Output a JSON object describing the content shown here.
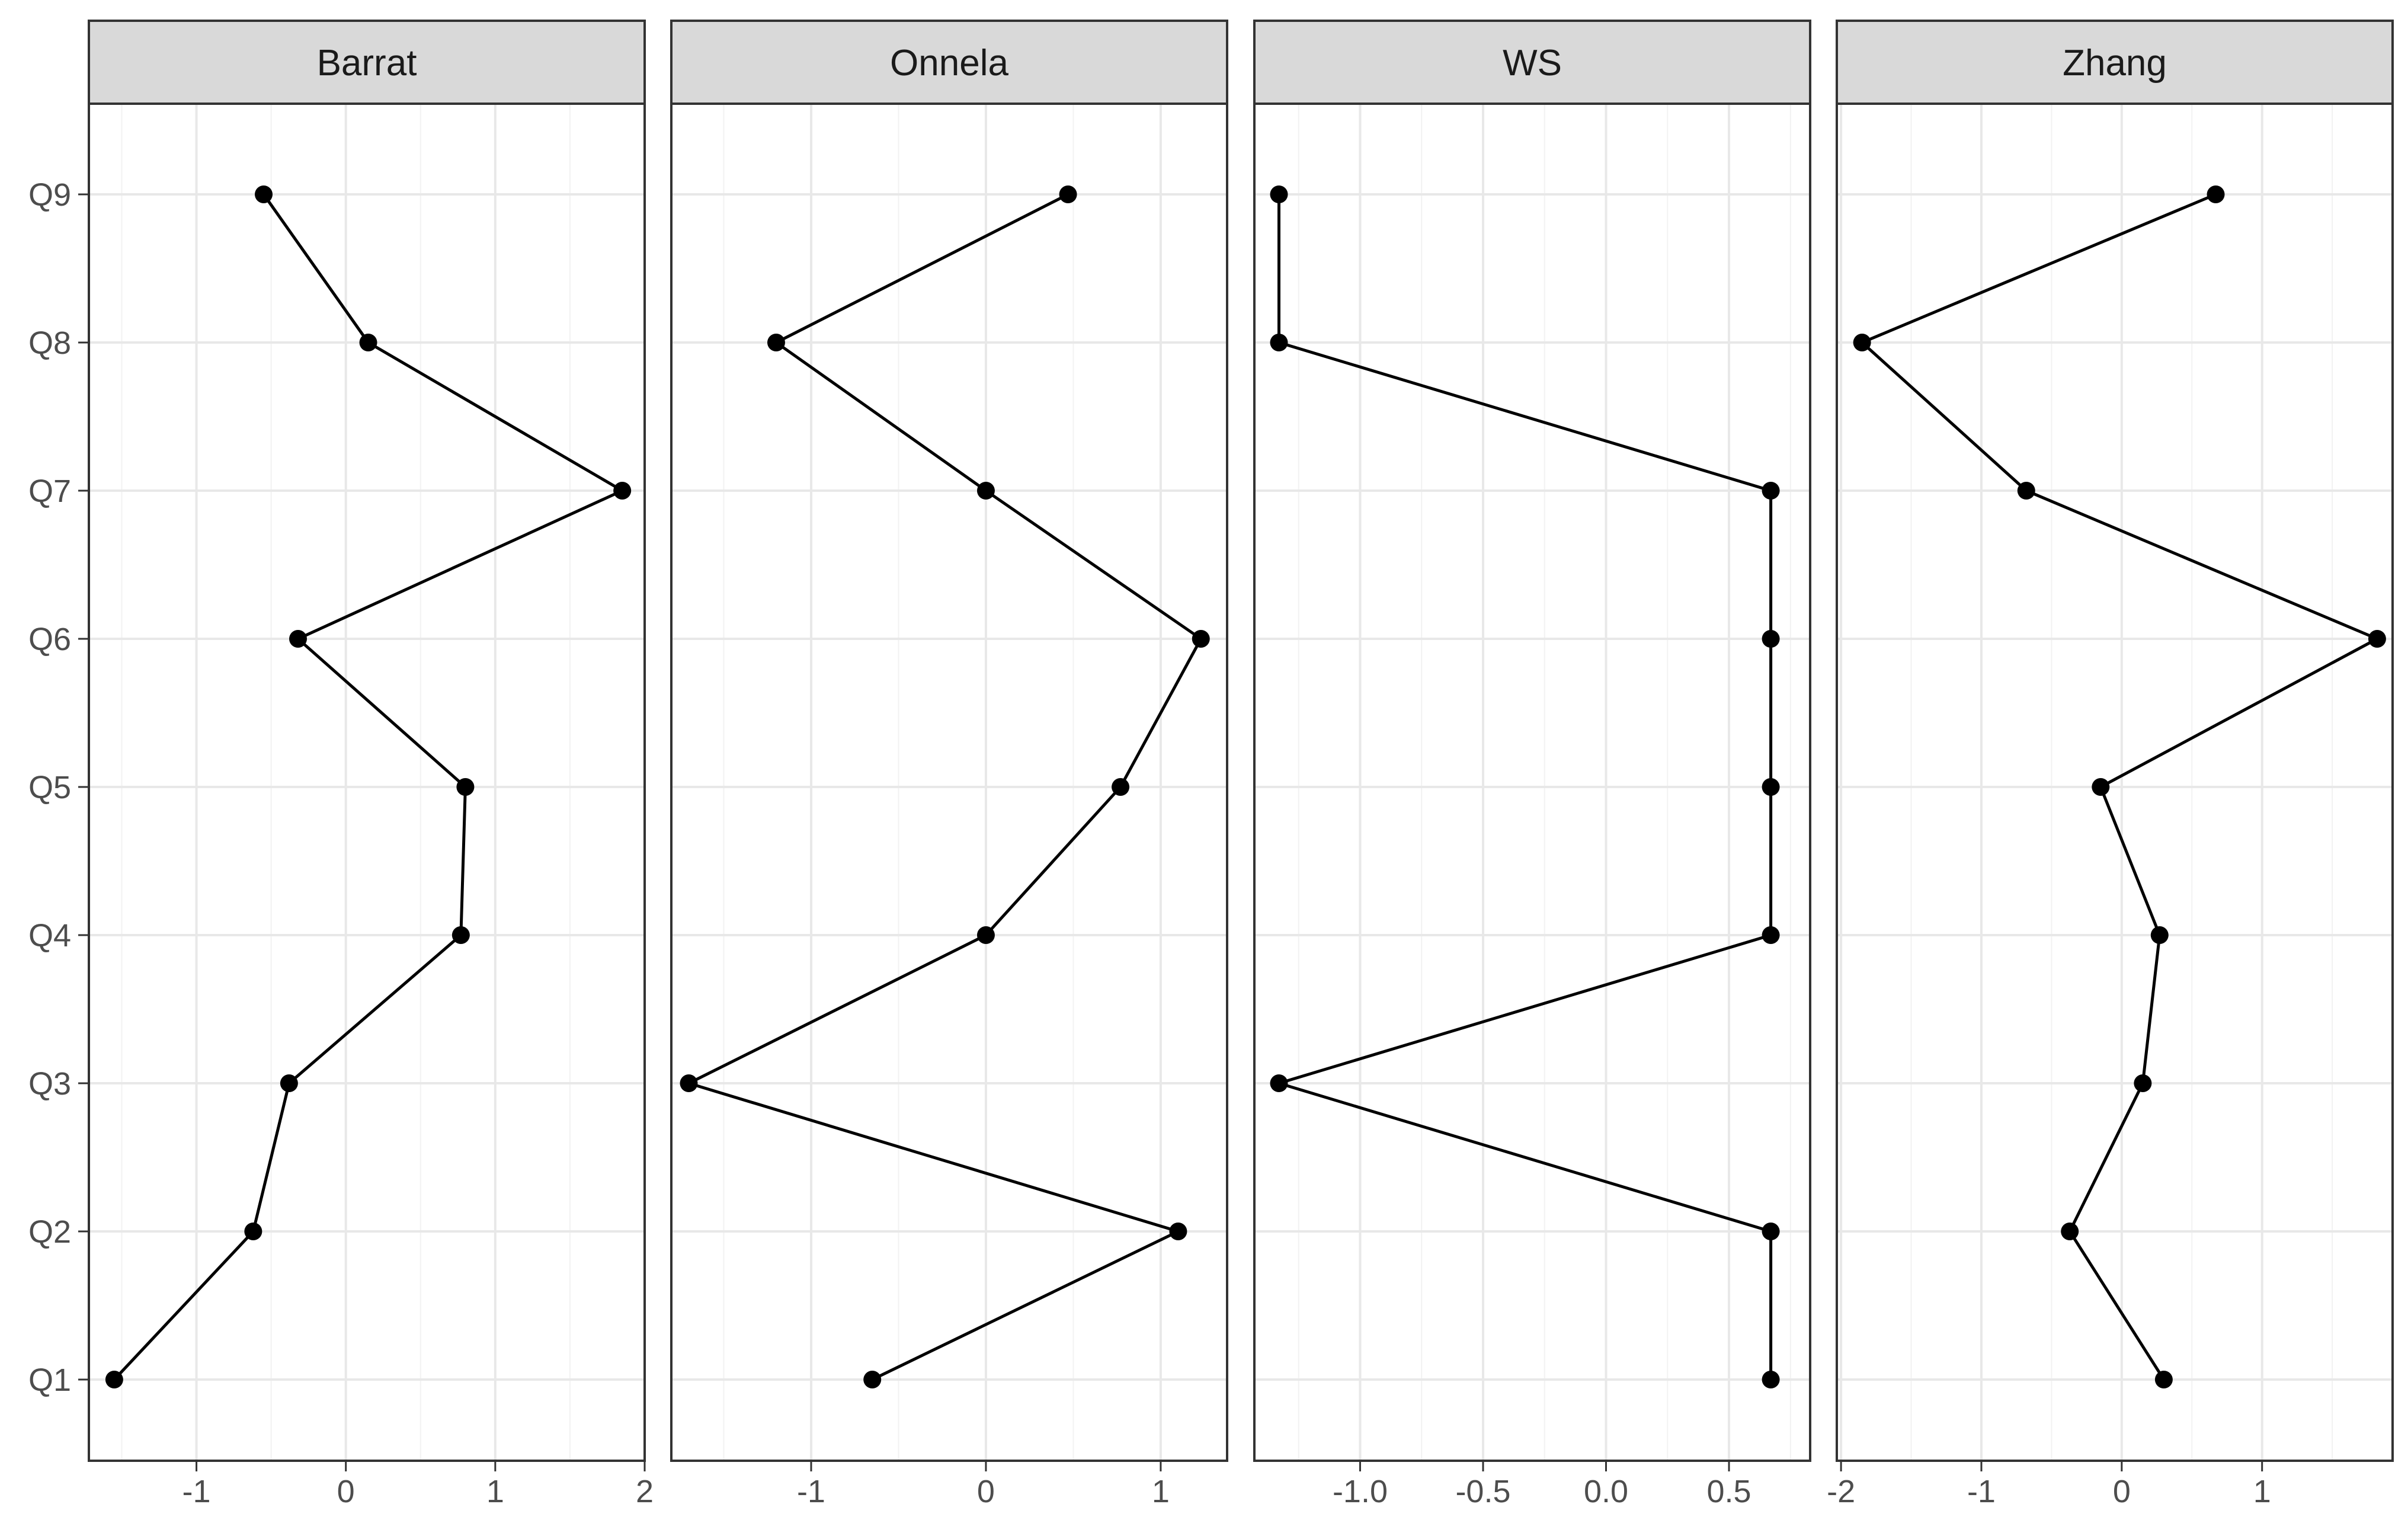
{
  "chart_data": {
    "type": "line",
    "categories": [
      "Q1",
      "Q2",
      "Q3",
      "Q4",
      "Q5",
      "Q6",
      "Q7",
      "Q8",
      "Q9"
    ],
    "grid": true,
    "legend": "none",
    "colors": {
      "line": "#000000",
      "point": "#000000",
      "grid": "#e8e8e8",
      "strip_fill": "#d9d9d9",
      "panel_border": "#333333"
    },
    "panels": [
      {
        "title": "Barrat",
        "xlim": [
          -1.72,
          2.0
        ],
        "x_ticks": [
          -1,
          0,
          1,
          2
        ],
        "x_tick_labels": [
          "-1",
          "0",
          "1",
          "2"
        ],
        "values": [
          -1.55,
          -0.62,
          -0.38,
          0.77,
          0.8,
          -0.32,
          1.85,
          0.15,
          -0.55
        ]
      },
      {
        "title": "Onnela",
        "xlim": [
          -1.8,
          1.38
        ],
        "x_ticks": [
          -1,
          0,
          1
        ],
        "x_tick_labels": [
          "-1",
          "0",
          "1"
        ],
        "values": [
          -0.65,
          1.1,
          -1.7,
          0.0,
          0.77,
          1.23,
          0.0,
          -1.2,
          0.47
        ]
      },
      {
        "title": "WS",
        "xlim": [
          -1.43,
          0.83
        ],
        "x_ticks": [
          -1.0,
          -0.5,
          0.0,
          0.5
        ],
        "x_tick_labels": [
          "-1.0",
          "-0.5",
          "0.0",
          "0.5"
        ],
        "values": [
          0.67,
          0.67,
          -1.33,
          0.67,
          0.67,
          0.67,
          0.67,
          -1.33,
          -1.33
        ]
      },
      {
        "title": "Zhang",
        "xlim": [
          -2.03,
          1.93
        ],
        "x_ticks": [
          -2,
          -1,
          0,
          1
        ],
        "x_tick_labels": [
          "-2",
          "-1",
          "0",
          "1"
        ],
        "values": [
          0.3,
          -0.37,
          0.15,
          0.27,
          -0.15,
          1.82,
          -0.68,
          -1.85,
          0.67
        ]
      }
    ]
  }
}
